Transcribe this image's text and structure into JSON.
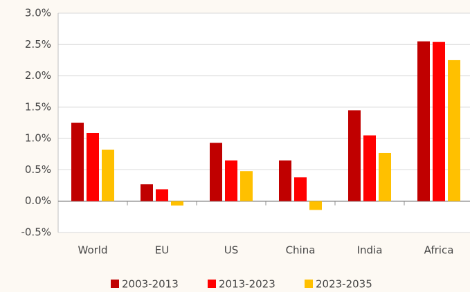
{
  "chart_data": {
    "type": "bar",
    "categories": [
      "World",
      "EU",
      "US",
      "China",
      "India",
      "Africa"
    ],
    "series": [
      {
        "name": "2003-2013",
        "color": "#c00000",
        "values": [
          1.25,
          0.27,
          0.93,
          0.65,
          1.45,
          2.55
        ]
      },
      {
        "name": "2013-2023",
        "color": "#ff0000",
        "values": [
          1.09,
          0.19,
          0.65,
          0.38,
          1.05,
          2.54
        ]
      },
      {
        "name": "2023-2035",
        "color": "#ffc000",
        "values": [
          0.82,
          -0.07,
          0.48,
          -0.14,
          0.77,
          2.25
        ]
      }
    ],
    "ylim": [
      -0.5,
      3.0
    ],
    "yticks": [
      {
        "value": -0.5,
        "label": "-0.5%"
      },
      {
        "value": 0,
        "label": "0.0%"
      },
      {
        "value": 0.5,
        "label": "0.5%"
      },
      {
        "value": 1,
        "label": "1.0%"
      },
      {
        "value": 1.5,
        "label": "1.5%"
      },
      {
        "value": 2,
        "label": "2.0%"
      },
      {
        "value": 2.5,
        "label": "2.5%"
      },
      {
        "value": 3,
        "label": "3.0%"
      }
    ],
    "grid": true,
    "legend": "bottom"
  }
}
